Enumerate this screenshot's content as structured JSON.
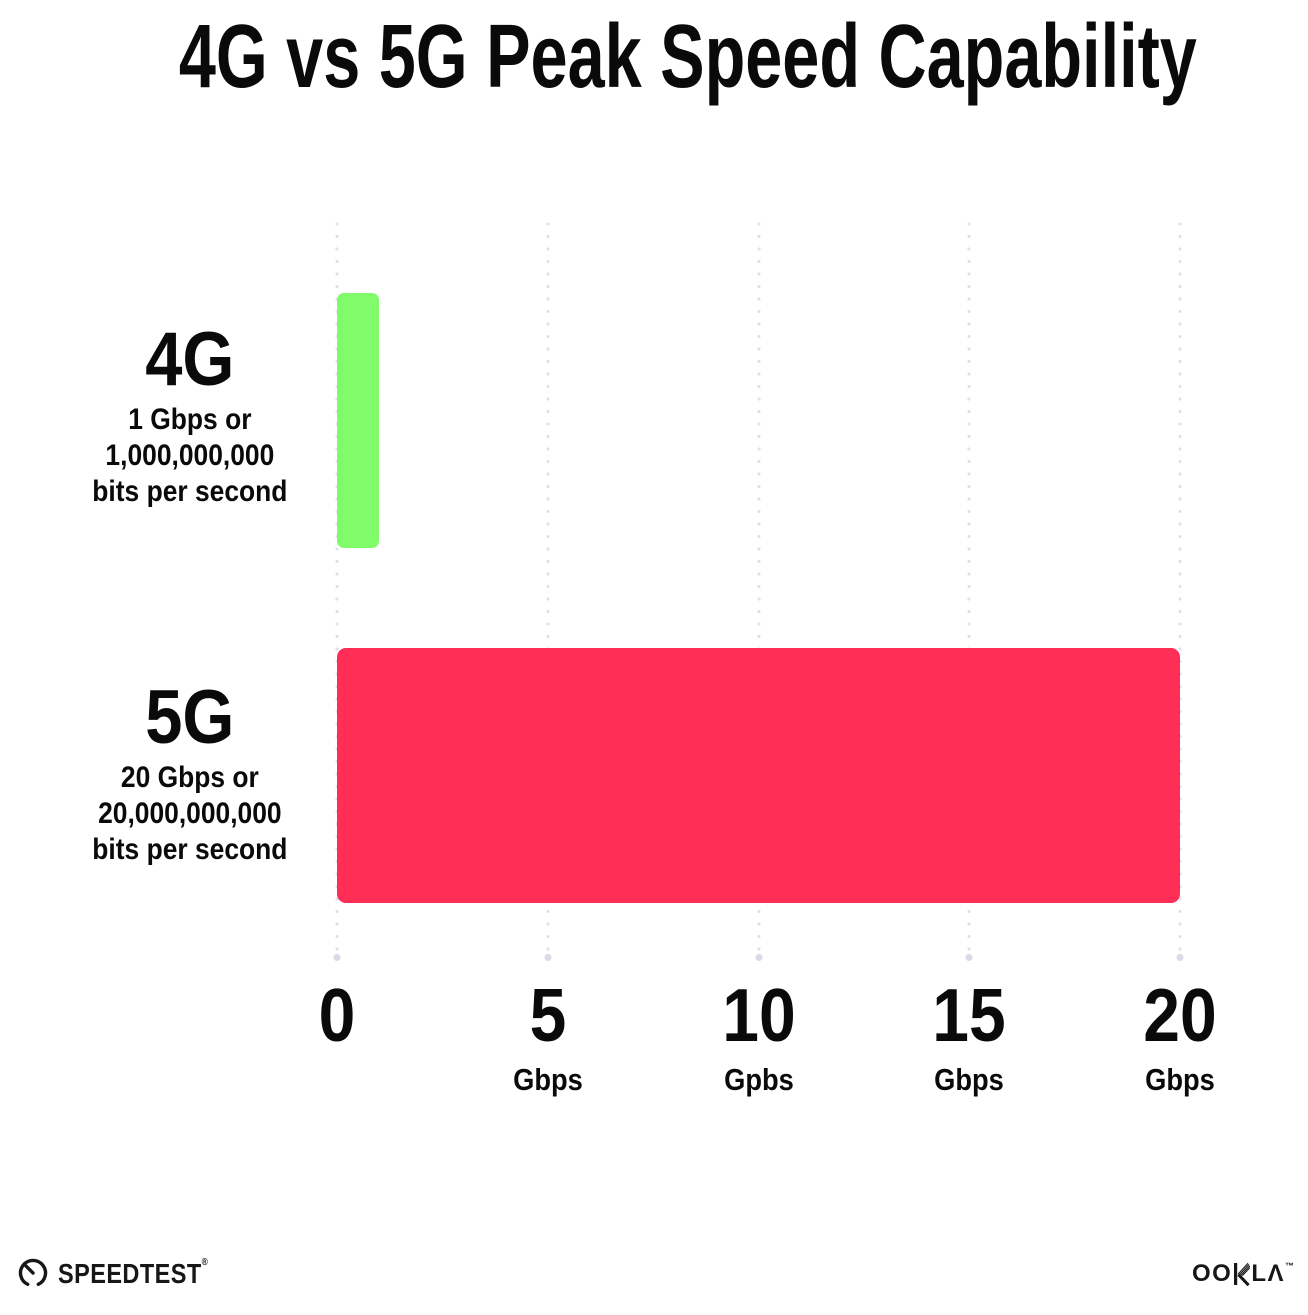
{
  "chart_data": {
    "type": "bar",
    "orientation": "horizontal",
    "title": "4G vs 5G Peak Speed Capability",
    "categories": [
      "4G",
      "5G"
    ],
    "values": [
      1,
      20
    ],
    "bar_colors": [
      "#80FB69",
      "#FF2E56"
    ],
    "value_descriptions": [
      "1 Gbps or 1,000,000,000 bits per second",
      "20 Gbps or 20,000,000,000 bits per second"
    ],
    "xlim": [
      0,
      20
    ],
    "x_ticks": [
      {
        "value": "0",
        "unit": ""
      },
      {
        "value": "5",
        "unit": "Gbps"
      },
      {
        "value": "10",
        "unit": "Gpbs"
      },
      {
        "value": "15",
        "unit": "Gbps"
      },
      {
        "value": "20",
        "unit": "Gbps"
      }
    ],
    "grid": "vertical-dotted",
    "legend": "none"
  },
  "rows": [
    {
      "name": "4G",
      "desc": [
        "1 Gbps or",
        "1,000,000,000",
        "bits per second"
      ]
    },
    {
      "name": "5G",
      "desc": [
        "20 Gbps or",
        "20,000,000,000",
        "bits per second"
      ]
    }
  ],
  "footer": {
    "speedtest": "SPEEDTEST",
    "speedtest_mark": "®",
    "ookla": "OOKLA",
    "ookla_prefix": "OO",
    "ookla_suffix": "LΛ",
    "ookla_mark": "™"
  }
}
